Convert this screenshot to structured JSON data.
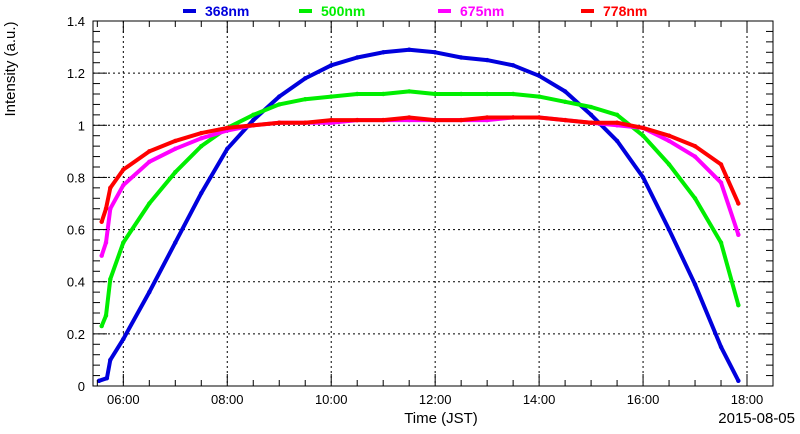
{
  "chart_data": {
    "type": "line",
    "xlabel": "Time (JST)",
    "ylabel": "Intensity (a.u.)",
    "date_label": "2015-08-05",
    "xlim": [
      "05:25",
      "18:30"
    ],
    "ylim": [
      0,
      1.4
    ],
    "x_ticks": [
      "06:00",
      "08:00",
      "10:00",
      "12:00",
      "14:00",
      "16:00",
      "18:00"
    ],
    "y_ticks": [
      "0",
      "0.2",
      "0.4",
      "0.6",
      "0.8",
      "1",
      "1.2",
      "1.4"
    ],
    "grid": true,
    "legend_position": "top",
    "series": [
      {
        "name": "368nm",
        "color": "#0000dd",
        "x": [
          "05:32",
          "05:41",
          "05:45",
          "06:00",
          "06:30",
          "07:00",
          "07:30",
          "08:00",
          "08:30",
          "09:00",
          "09:30",
          "10:00",
          "10:30",
          "11:00",
          "11:30",
          "12:00",
          "12:30",
          "13:00",
          "13:30",
          "14:00",
          "14:30",
          "15:00",
          "15:30",
          "16:00",
          "16:30",
          "17:00",
          "17:30",
          "17:50"
        ],
        "values": [
          0.02,
          0.03,
          0.1,
          0.18,
          0.36,
          0.55,
          0.74,
          0.91,
          1.02,
          1.11,
          1.18,
          1.23,
          1.26,
          1.28,
          1.29,
          1.28,
          1.26,
          1.25,
          1.23,
          1.19,
          1.13,
          1.04,
          0.94,
          0.8,
          0.6,
          0.39,
          0.15,
          0.02
        ]
      },
      {
        "name": "500nm",
        "color": "#00ee00",
        "x": [
          "05:35",
          "05:40",
          "05:45",
          "06:00",
          "06:30",
          "07:00",
          "07:30",
          "08:00",
          "08:30",
          "09:00",
          "09:30",
          "10:00",
          "10:30",
          "11:00",
          "11:30",
          "12:00",
          "12:30",
          "13:00",
          "13:30",
          "14:00",
          "14:30",
          "15:00",
          "15:30",
          "16:00",
          "16:30",
          "17:00",
          "17:30",
          "17:50"
        ],
        "values": [
          0.23,
          0.27,
          0.41,
          0.55,
          0.7,
          0.82,
          0.92,
          0.99,
          1.04,
          1.08,
          1.1,
          1.11,
          1.12,
          1.12,
          1.13,
          1.12,
          1.12,
          1.12,
          1.12,
          1.11,
          1.09,
          1.07,
          1.04,
          0.96,
          0.85,
          0.72,
          0.55,
          0.31
        ]
      },
      {
        "name": "675nm",
        "color": "#ff00ff",
        "x": [
          "05:35",
          "05:40",
          "05:45",
          "06:00",
          "06:30",
          "07:00",
          "07:30",
          "08:00",
          "08:30",
          "09:00",
          "09:30",
          "10:00",
          "10:30",
          "11:00",
          "11:30",
          "12:00",
          "12:30",
          "13:00",
          "13:30",
          "14:00",
          "14:30",
          "15:00",
          "15:30",
          "16:00",
          "16:30",
          "17:00",
          "17:30",
          "17:50"
        ],
        "values": [
          0.5,
          0.55,
          0.68,
          0.77,
          0.86,
          0.91,
          0.95,
          0.98,
          1.0,
          1.01,
          1.01,
          1.01,
          1.02,
          1.02,
          1.02,
          1.02,
          1.02,
          1.02,
          1.03,
          1.03,
          1.02,
          1.01,
          1.0,
          0.99,
          0.94,
          0.88,
          0.78,
          0.58
        ]
      },
      {
        "name": "778nm",
        "color": "#ff0000",
        "x": [
          "05:35",
          "05:40",
          "05:45",
          "06:00",
          "06:30",
          "07:00",
          "07:30",
          "08:00",
          "08:30",
          "09:00",
          "09:30",
          "10:00",
          "10:30",
          "11:00",
          "11:30",
          "12:00",
          "12:30",
          "13:00",
          "13:30",
          "14:00",
          "14:30",
          "15:00",
          "15:30",
          "16:00",
          "16:30",
          "17:00",
          "17:30",
          "17:50"
        ],
        "values": [
          0.63,
          0.68,
          0.76,
          0.83,
          0.9,
          0.94,
          0.97,
          0.99,
          1.0,
          1.01,
          1.01,
          1.02,
          1.02,
          1.02,
          1.03,
          1.02,
          1.02,
          1.03,
          1.03,
          1.03,
          1.02,
          1.01,
          1.01,
          0.99,
          0.96,
          0.92,
          0.85,
          0.7
        ]
      }
    ]
  }
}
